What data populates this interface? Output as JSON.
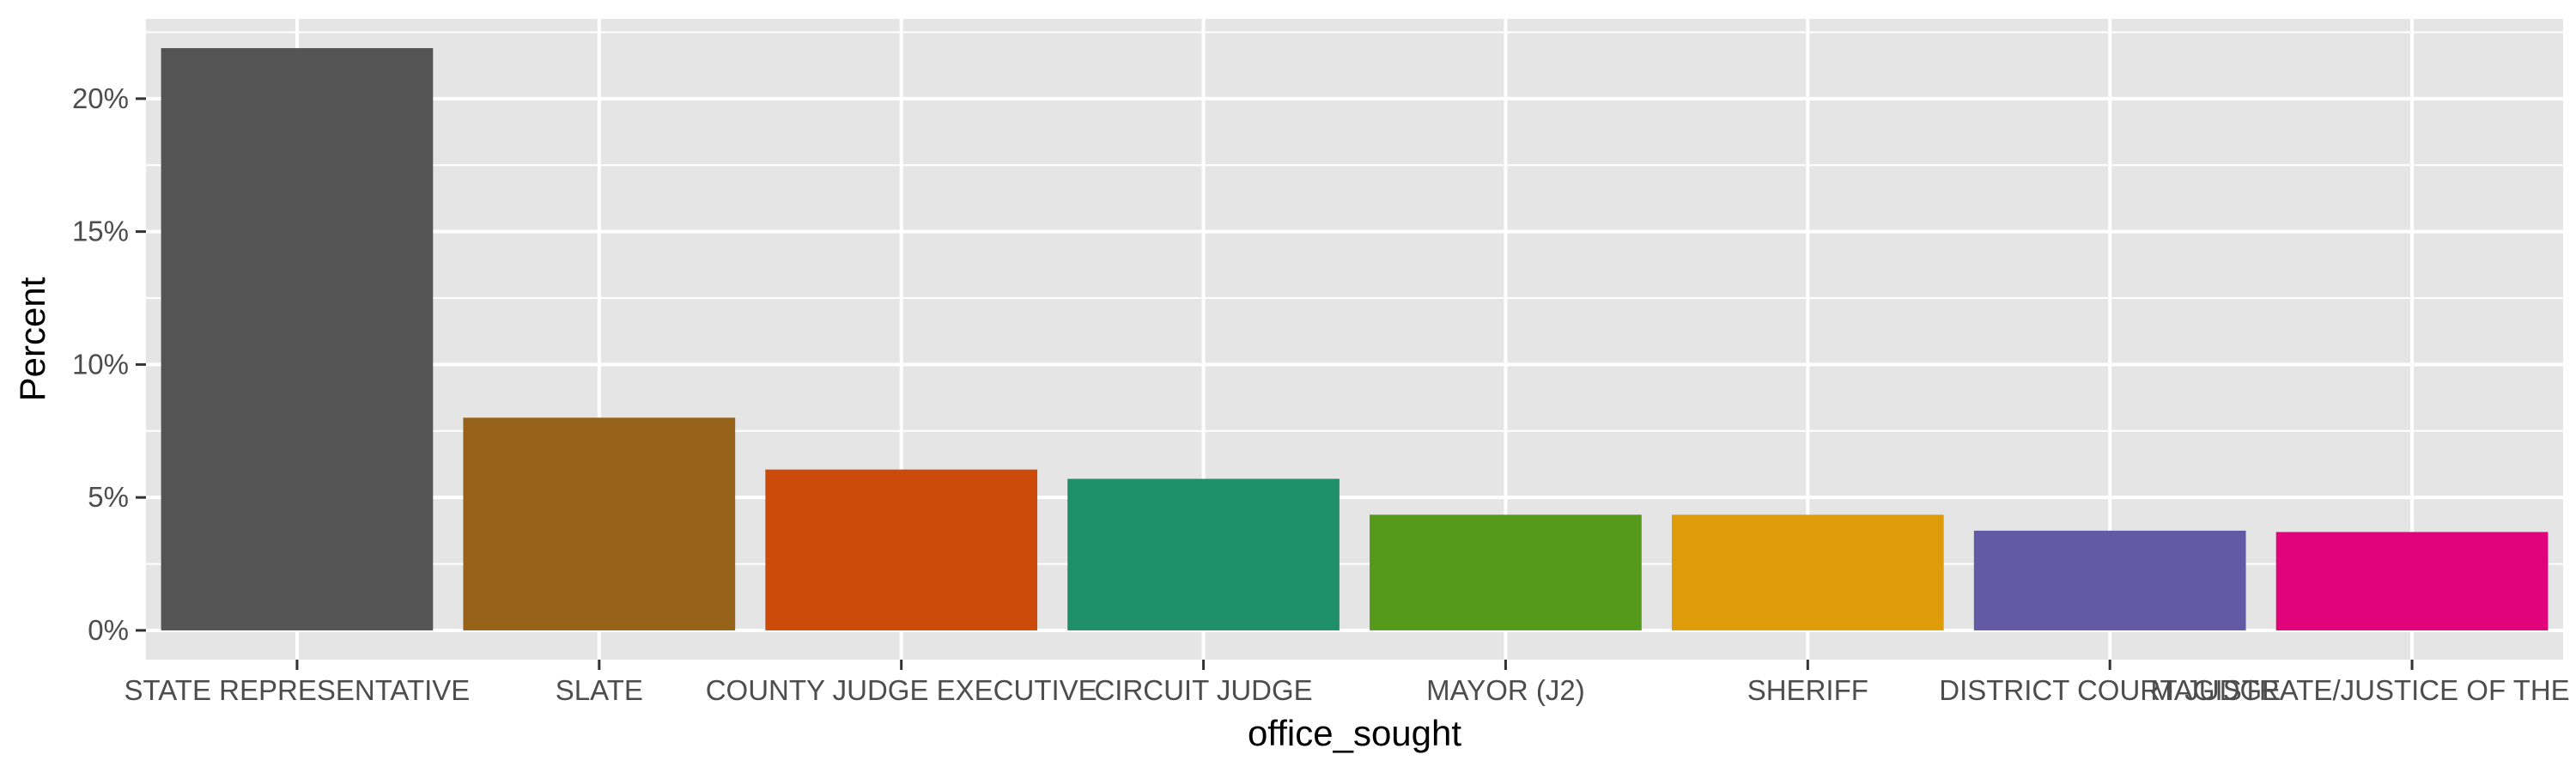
{
  "chart_data": {
    "type": "bar",
    "xlabel": "office_sought",
    "ylabel": "Percent",
    "categories": [
      "STATE REPRESENTATIVE",
      "SLATE",
      "COUNTY JUDGE EXECUTIVE",
      "CIRCUIT JUDGE",
      "MAYOR (J2)",
      "SHERIFF",
      "DISTRICT COURT JUDGE",
      "MAGISTRATE/JUSTICE OF THE PEACE"
    ],
    "values": [
      21.9,
      8.0,
      6.05,
      5.7,
      4.35,
      4.35,
      3.75,
      3.7
    ],
    "colors": [
      "#545454",
      "#966219",
      "#cc4b0b",
      "#1f8f69",
      "#559a1a",
      "#de9c09",
      "#625aa5",
      "#e0037a"
    ],
    "ylim": [
      -1.1,
      23.0
    ],
    "y_ticks": [
      0,
      5,
      10,
      15,
      20
    ],
    "y_tick_labels": [
      "0%",
      "5%",
      "10%",
      "15%",
      "20%"
    ],
    "grid": true,
    "legend": "none",
    "panel_background": "#e5e5e5",
    "grid_color": "#ffffff"
  }
}
